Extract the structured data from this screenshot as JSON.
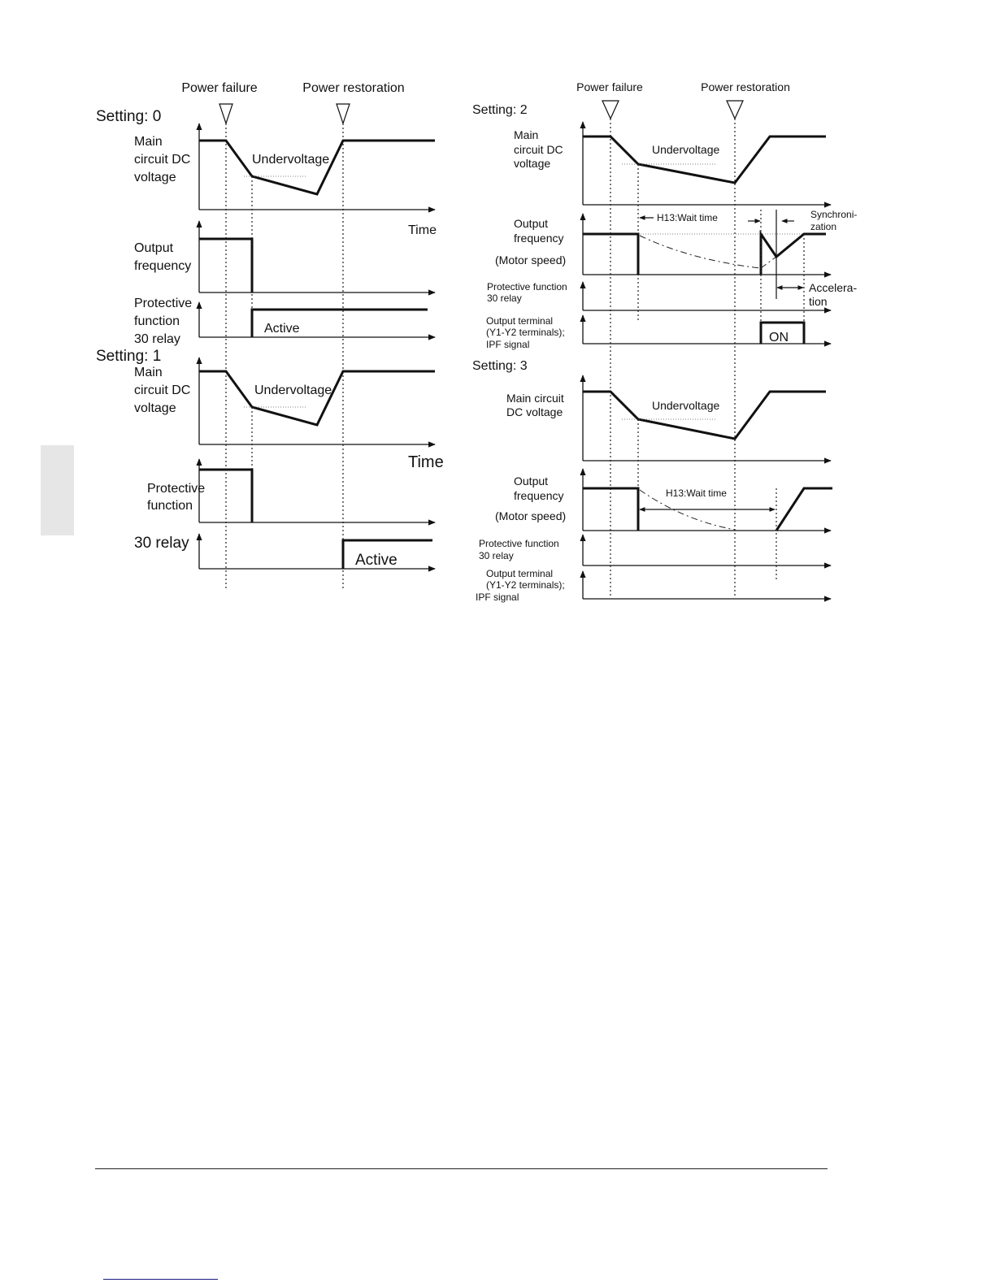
{
  "left": {
    "power_failure": "Power failure",
    "power_restoration": "Power restoration",
    "setting0": {
      "title": "Setting: 0",
      "dc_label": [
        "Main",
        "circuit DC",
        "voltage"
      ],
      "undervoltage": "Undervoltage",
      "time": "Time",
      "freq_label": [
        "Output",
        "frequency"
      ],
      "relay_label": [
        "Protective",
        "function",
        "30 relay"
      ],
      "active": "Active"
    },
    "setting1": {
      "title": "Setting: 1",
      "dc_label": [
        "Main",
        "circuit DC",
        "voltage"
      ],
      "undervoltage": "Undervoltage",
      "time": "Time",
      "prot_label": [
        "Protective",
        "function"
      ],
      "relay_label": "30 relay",
      "active": "Active"
    }
  },
  "right": {
    "power_failure": "Power failure",
    "power_restoration": "Power restoration",
    "setting2": {
      "title": "Setting: 2",
      "dc_label": [
        "Main",
        "circuit DC",
        "voltage"
      ],
      "undervoltage": "Undervoltage",
      "freq_label": [
        "Output",
        "frequency",
        "(Motor speed)"
      ],
      "wait_time": "H13:Wait time",
      "sync": [
        "Synchroni-",
        "zation"
      ],
      "relay_label": [
        "Protective function",
        "30 relay"
      ],
      "accel": [
        "Accelera-",
        "tion"
      ],
      "terminal_label": [
        "Output terminal",
        "(Y1-Y2 terminals);",
        "IPF signal"
      ],
      "on": "ON"
    },
    "setting3": {
      "title": "Setting: 3",
      "dc_label": [
        "Main circuit",
        "DC voltage"
      ],
      "undervoltage": "Undervoltage",
      "freq_label": [
        "Output",
        "frequency",
        "(Motor speed)"
      ],
      "wait_time": "H13:Wait time",
      "relay_label": [
        "Protective function",
        "30 relay"
      ],
      "terminal_label": [
        "Output terminal",
        "(Y1-Y2 terminals);",
        "IPF signal"
      ]
    }
  },
  "colors": {
    "section_tab": "#e6e6e6",
    "link_rule": "#1a1a80"
  }
}
